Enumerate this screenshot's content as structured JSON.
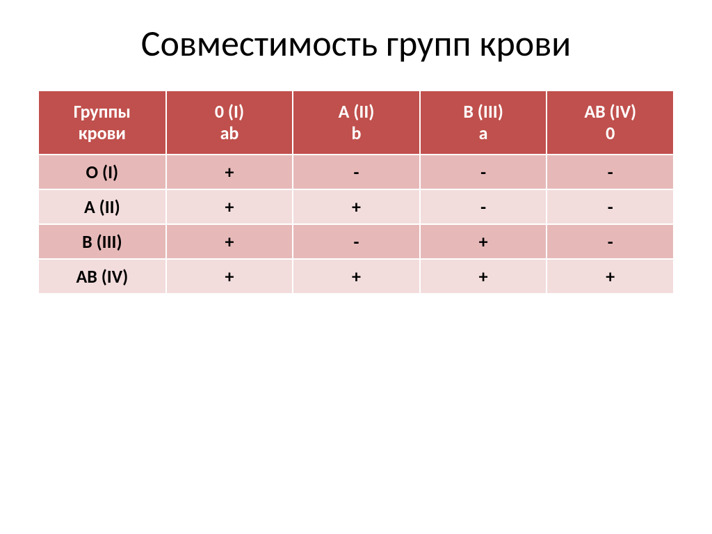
{
  "title": "Совместимость групп крови",
  "table": {
    "type": "table",
    "header_bg": "#c0504d",
    "header_fg": "#ffffff",
    "row_odd_bg": "#e6b9b8",
    "row_even_bg": "#f2dddc",
    "cell_fg": "#000000",
    "border_color": "#ffffff",
    "title_fontsize": 52,
    "header_fontsize": 26,
    "cell_fontsize": 26,
    "columns": [
      {
        "line1": "Группы",
        "line2": "крови"
      },
      {
        "line1": "0 (I)",
        "line2": "ab"
      },
      {
        "line1": "A (II)",
        "line2": "b"
      },
      {
        "line1": "B (III)",
        "line2": "a"
      },
      {
        "line1": "AB (IV)",
        "line2": "0"
      }
    ],
    "rows": [
      {
        "label": "O (I)",
        "cells": [
          "+",
          "-",
          "-",
          "-"
        ]
      },
      {
        "label": "A (II)",
        "cells": [
          "+",
          "+",
          "-",
          "-"
        ]
      },
      {
        "label": "B (III)",
        "cells": [
          "+",
          "-",
          "+",
          "-"
        ]
      },
      {
        "label": "AB (IV)",
        "cells": [
          "+",
          "+",
          "+",
          "+"
        ]
      }
    ]
  }
}
